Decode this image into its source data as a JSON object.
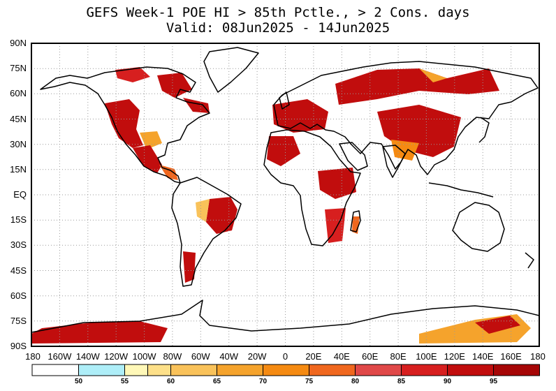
{
  "title": {
    "line1": "GEFS Week-1 POE HI > 85th Pctle., > 2 Cons. days",
    "line2": "Valid: 08Jun2025 - 14Jun2025"
  },
  "map": {
    "lat_labels": [
      "90N",
      "75N",
      "60N",
      "45N",
      "30N",
      "15N",
      "EQ",
      "15S",
      "30S",
      "45S",
      "60S",
      "75S",
      "90S"
    ],
    "lon_labels": [
      "180",
      "160W",
      "140W",
      "120W",
      "100W",
      "80W",
      "60W",
      "40W",
      "20W",
      "0",
      "20E",
      "40E",
      "60E",
      "80E",
      "100E",
      "120E",
      "140E",
      "160E",
      "180"
    ],
    "grid": "dotted"
  },
  "colorbar": {
    "colors": [
      "#ffffff",
      "#aeeef8",
      "#fff8b8",
      "#fde089",
      "#f9c25a",
      "#f5a32c",
      "#f58a12",
      "#f0671e",
      "#e04848",
      "#d71f1f",
      "#c10d0d",
      "#a60606"
    ],
    "labels": [
      "50",
      "55",
      "60",
      "65",
      "70",
      "75",
      "80",
      "85",
      "90",
      "95"
    ]
  },
  "hotspots": [
    {
      "region": "Western North America",
      "level": 90
    },
    {
      "region": "Hudson Bay / Northeast Canada",
      "level": 90
    },
    {
      "region": "Mexico / Central America",
      "level": 85
    },
    {
      "region": "Brazil",
      "level": 90
    },
    {
      "region": "Southern South America",
      "level": 90
    },
    {
      "region": "Western Europe / Mediterranean",
      "level": 90
    },
    {
      "region": "Northwest Africa",
      "level": 90
    },
    {
      "region": "East Africa",
      "level": 90
    },
    {
      "region": "Southeast Africa / Madagascar",
      "level": 85
    },
    {
      "region": "Siberia / Russia",
      "level": 95
    },
    {
      "region": "Central Asia / China",
      "level": 95
    },
    {
      "region": "West Antarctica",
      "level": 95
    },
    {
      "region": "East Antarctica",
      "level": 80
    }
  ]
}
